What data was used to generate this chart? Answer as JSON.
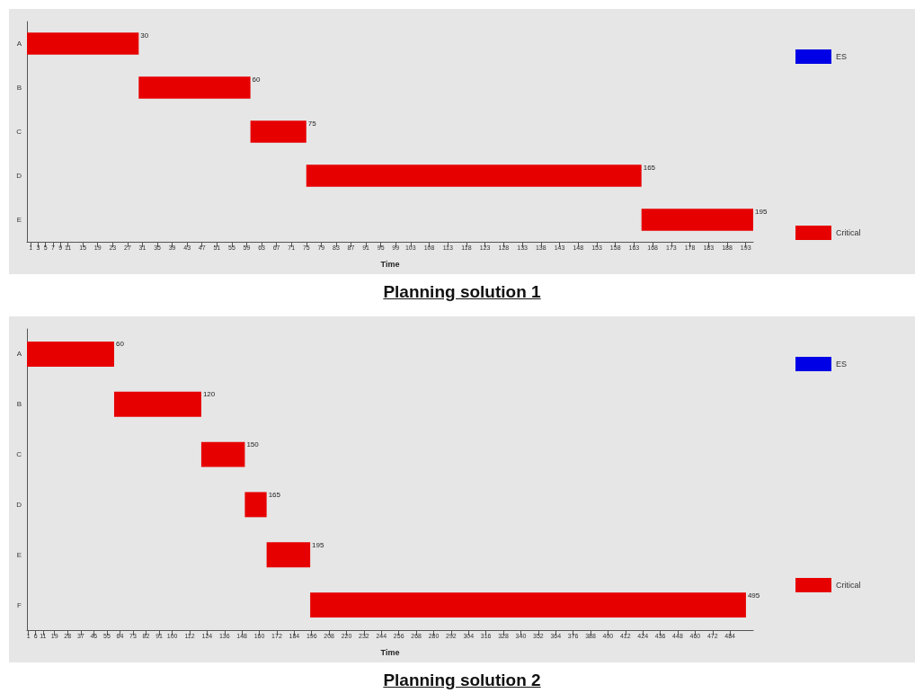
{
  "chart_data": [
    {
      "type": "bar",
      "orientation": "horizontal",
      "title": "Planning solution 1",
      "xlabel": "Time",
      "categories": [
        "A",
        "B",
        "C",
        "D",
        "E"
      ],
      "series": [
        {
          "name": "ES",
          "color": "#0000e6",
          "values": [
            null,
            null,
            null,
            null,
            null
          ]
        },
        {
          "name": "Critical",
          "color": "#e60000",
          "values": [
            30,
            30,
            15,
            90,
            30
          ],
          "base": [
            0,
            30,
            60,
            75,
            165
          ],
          "value_labels": [
            "30",
            "60",
            "75",
            "165",
            "195"
          ]
        }
      ],
      "xlim": [
        0,
        195
      ],
      "xticks": [
        1,
        3,
        5,
        7,
        9,
        11,
        15,
        19,
        23,
        27,
        31,
        35,
        39,
        43,
        47,
        51,
        55,
        59,
        63,
        67,
        71,
        75,
        79,
        83,
        87,
        91,
        95,
        99,
        103,
        108,
        113,
        118,
        123,
        128,
        133,
        138,
        143,
        148,
        153,
        158,
        163,
        168,
        173,
        178,
        183,
        188,
        193
      ],
      "grid": false,
      "legend": "right"
    },
    {
      "type": "bar",
      "orientation": "horizontal",
      "title": "Planning solution 2",
      "xlabel": "Time",
      "categories": [
        "A",
        "B",
        "C",
        "D",
        "E",
        "F"
      ],
      "series": [
        {
          "name": "ES",
          "color": "#0000e6",
          "values": [
            null,
            null,
            null,
            null,
            null,
            null
          ]
        },
        {
          "name": "Critical",
          "color": "#e60000",
          "values": [
            60,
            60,
            30,
            15,
            30,
            300
          ],
          "base": [
            0,
            60,
            120,
            150,
            165,
            195
          ],
          "value_labels": [
            "60",
            "120",
            "150",
            "165",
            "195",
            "495"
          ]
        }
      ],
      "xlim": [
        0,
        500
      ],
      "xticks": [
        1,
        6,
        11,
        19,
        28,
        37,
        46,
        55,
        64,
        73,
        82,
        91,
        100,
        112,
        124,
        136,
        148,
        160,
        172,
        184,
        196,
        208,
        220,
        232,
        244,
        256,
        268,
        280,
        292,
        304,
        316,
        328,
        340,
        352,
        364,
        376,
        388,
        400,
        412,
        424,
        436,
        448,
        460,
        472,
        484
      ],
      "grid": false,
      "legend": "right"
    }
  ]
}
